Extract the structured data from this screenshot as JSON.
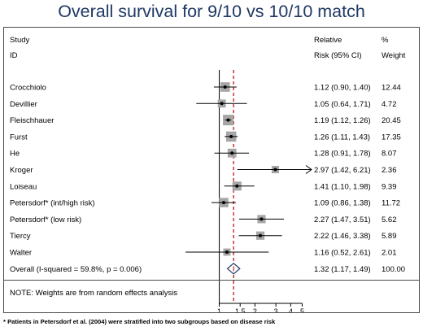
{
  "title": "Overall survival for 9/10 vs 10/10 match",
  "header": {
    "study_line1": "Study",
    "study_line2": "ID",
    "rr_line1": "Relative",
    "rr_line2": "Risk (95% CI)",
    "pct_line1": "%",
    "pct_line2": "Weight"
  },
  "note": "NOTE: Weights are from random effects analysis",
  "footnote": "* Patients in Petersdorf et al. (2004) were stratified into two subgroups based on disease risk",
  "chart_data": {
    "type": "forest",
    "x_scale": "log",
    "xlim": [
      0.45,
      6.0
    ],
    "x_ticks": [
      {
        "value": 1,
        "label": "1"
      },
      {
        "value": 1.5,
        "label": "1.5"
      },
      {
        "value": 2,
        "label": "2"
      },
      {
        "value": 3,
        "label": "3"
      },
      {
        "value": 4,
        "label": "4"
      },
      {
        "value": 5,
        "label": "5"
      }
    ],
    "reference_line": 1,
    "overall_line": 1.32,
    "colors": {
      "box": "#a6a6a6",
      "ci": "#000000",
      "overall_line": "#c00000",
      "diamond": "#1f3864"
    },
    "studies": [
      {
        "name": "Crocchiolo",
        "rr": 1.12,
        "lo": 0.9,
        "hi": 1.4,
        "text": "1.12 (0.90, 1.40)",
        "weight": 12.44,
        "weight_text": "12.44"
      },
      {
        "name": "Devillier",
        "rr": 1.05,
        "lo": 0.64,
        "hi": 1.71,
        "text": "1.05 (0.64, 1.71)",
        "weight": 4.72,
        "weight_text": "4.72"
      },
      {
        "name": "Fleischhauer",
        "rr": 1.19,
        "lo": 1.12,
        "hi": 1.26,
        "text": "1.19 (1.12, 1.26)",
        "weight": 20.45,
        "weight_text": "20.45"
      },
      {
        "name": "Furst",
        "rr": 1.26,
        "lo": 1.11,
        "hi": 1.43,
        "text": "1.26 (1.11, 1.43)",
        "weight": 17.35,
        "weight_text": "17.35"
      },
      {
        "name": "He",
        "rr": 1.28,
        "lo": 0.91,
        "hi": 1.78,
        "text": "1.28 (0.91, 1.78)",
        "weight": 8.07,
        "weight_text": "8.07"
      },
      {
        "name": "Kroger",
        "rr": 2.97,
        "lo": 1.42,
        "hi": 6.21,
        "text": "2.97 (1.42, 6.21)",
        "weight": 2.36,
        "weight_text": "2.36",
        "arrow": true
      },
      {
        "name": "Loiseau",
        "rr": 1.41,
        "lo": 1.1,
        "hi": 1.98,
        "text": "1.41 (1.10, 1.98)",
        "weight": 9.39,
        "weight_text": "9.39"
      },
      {
        "name": "Petersdorf* (int/high risk)",
        "rr": 1.09,
        "lo": 0.86,
        "hi": 1.38,
        "text": "1.09 (0.86, 1.38)",
        "weight": 11.72,
        "weight_text": "11.72"
      },
      {
        "name": "Petersdorf* (low risk)",
        "rr": 2.27,
        "lo": 1.47,
        "hi": 3.51,
        "text": "2.27 (1.47, 3.51)",
        "weight": 5.62,
        "weight_text": "5.62"
      },
      {
        "name": "Tiercy",
        "rr": 2.22,
        "lo": 1.46,
        "hi": 3.38,
        "text": "2.22 (1.46, 3.38)",
        "weight": 5.89,
        "weight_text": "5.89"
      },
      {
        "name": "Walter",
        "rr": 1.16,
        "lo": 0.52,
        "hi": 2.61,
        "text": "1.16 (0.52, 2.61)",
        "weight": 2.01,
        "weight_text": "2.01"
      }
    ],
    "overall": {
      "name": "Overall  (I-squared = 59.8%, p = 0.006)",
      "rr": 1.32,
      "lo": 1.17,
      "hi": 1.49,
      "text": "1.32 (1.17, 1.49)",
      "weight_text": "100.00"
    }
  }
}
